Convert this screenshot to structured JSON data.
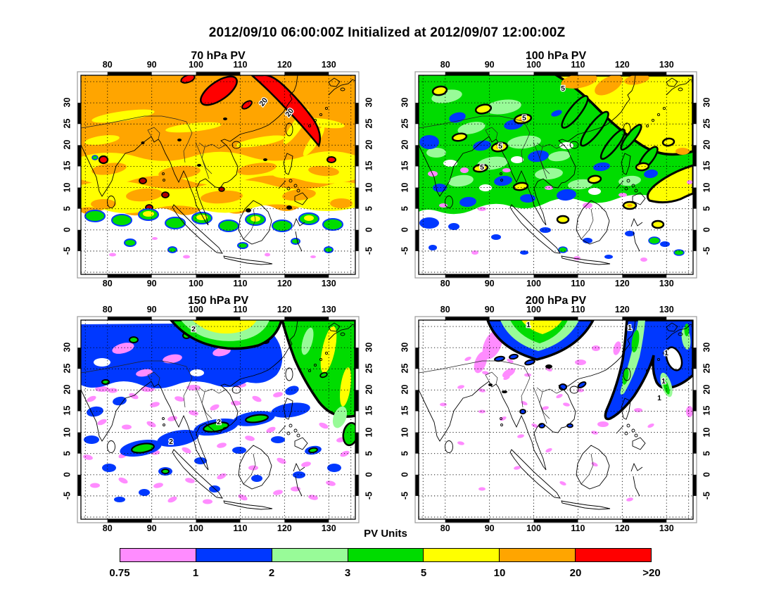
{
  "title": "2012/09/10 06:00:00Z Initialized at 2012/09/07 12:00:00Z",
  "colorbar": {
    "label": "PV Units",
    "tick_labels": [
      "0.75",
      "1",
      "2",
      "3",
      "5",
      "10",
      "20",
      ">20"
    ],
    "colors": [
      "#FF8CFF",
      "#0038FF",
      "#98FB98",
      "#00DC00",
      "#FFFF00",
      "#FFA500",
      "#FF0000"
    ]
  },
  "axes": {
    "lon_ticks": [
      80,
      90,
      100,
      110,
      120,
      130
    ],
    "lat_ticks": [
      -5,
      0,
      5,
      10,
      15,
      20,
      25,
      30
    ],
    "lon_range": [
      74,
      136
    ],
    "lat_range": [
      -10.5,
      36.5
    ]
  },
  "panels": [
    {
      "id": "70",
      "title": "70 hPa PV",
      "contour_label": "20"
    },
    {
      "id": "100",
      "title": "100 hPa PV",
      "contour_label": "5"
    },
    {
      "id": "150",
      "title": "150 hPa PV",
      "contour_label": "2"
    },
    {
      "id": "200",
      "title": "200 hPa PV",
      "contour_label": "1"
    }
  ],
  "chart_data": {
    "type": "heatmap",
    "title": "2012/09/10 06:00:00Z Initialized at 2012/09/07 12:00:00Z",
    "units_label": "PV Units",
    "levels": [
      0.75,
      1,
      2,
      3,
      5,
      10,
      20
    ],
    "level_colors": [
      "#FF8CFF",
      "#0038FF",
      "#98FB98",
      "#00DC00",
      "#FFFF00",
      "#FFA500",
      "#FF0000"
    ],
    "legend_labels": [
      "0.75",
      "1",
      "2",
      "3",
      "5",
      "10",
      "20",
      ">20"
    ],
    "x_ticks": [
      80,
      90,
      100,
      110,
      120,
      130
    ],
    "y_ticks": [
      -5,
      0,
      5,
      10,
      15,
      20,
      25,
      30
    ],
    "x_range_deg_east": [
      74,
      136
    ],
    "y_range_deg_north": [
      -10.5,
      36.5
    ],
    "grid": "dotted 5x10 degree graticule over Southeast Asia coastlines",
    "subplots": [
      {
        "title": "70 hPa PV",
        "contour_label": "20",
        "summary": "10-20 PVU (orange) covers most of the domain north of ~5N; 5-10 (yellow) wavy bands 5-20N; >20 PVU (red, black-contoured, labeled 20) arcs near 103-116E north of 30N; scattered green/blue spots along 0-5N; below ~0N mostly <0.75 (white)"
      },
      {
        "title": "100 hPa PV",
        "contour_label": "5",
        "summary": "3-5 PVU (green) over most of the domain; 5-10 (yellow) in the northeast quadrant bounded by a thick black contour labeled 5 with 10-20 (orange) tongues at top; many small 5-10 spots (yellow, black-outlined); blue 1-2 patches; south of ~5N mostly <1 with blue/pink speckles"
      },
      {
        "title": "150 hPa PV",
        "contour_label": "2",
        "summary": "tropics mostly <0.75 (white) with 0.75-1 pink speckles and 1-2 blue patches; large 1-2 (blue) region north of ~27N with 2-5 (green) and 5-10 (yellow) in the northeast corner behind a thick black contour labeled 2; a blue/green streak crosses ~8-15N"
      },
      {
        "title": "200 hPa PV",
        "contour_label": "1",
        "summary": "domain mostly <0.75 (white) with sparse pink speckles; a curved 1-2 (blue) band with 2-3 light-green/green core, black contour labeled 1, sweeps from ~117E,15N to the northeast corner; small concentric maximum (yellow/green/blue) at ~105-113E on the top edge"
      }
    ]
  }
}
